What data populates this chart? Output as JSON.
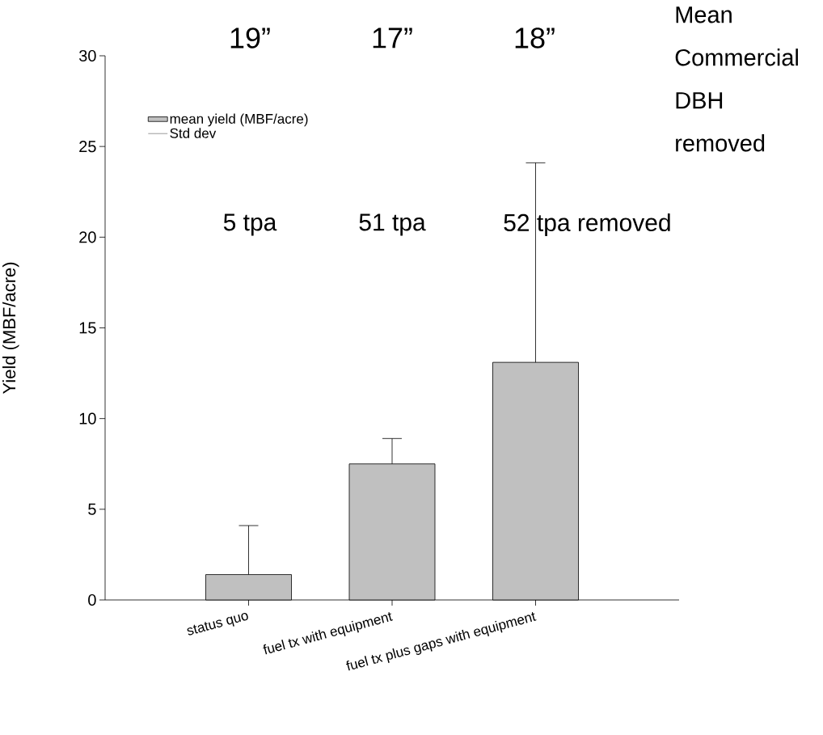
{
  "chart_data": {
    "type": "bar",
    "ylabel": "Yield (MBF/acre)",
    "categories": [
      "status quo",
      "fuel tx with equipment",
      "fuel tx plus gaps with equipment"
    ],
    "series": [
      {
        "name": "mean yield (MBF/acre)",
        "color": "#c0c0c0",
        "values": [
          1.4,
          7.5,
          13.1
        ],
        "errors": [
          [
            1.4,
            4.1
          ],
          [
            7.5,
            8.9
          ],
          [
            13.1,
            24.1
          ]
        ]
      }
    ],
    "ylim": [
      0,
      30
    ],
    "yticks": [
      0,
      5,
      10,
      15,
      20,
      25,
      30
    ],
    "legend": "top left",
    "grid": false,
    "annotations": [
      "19”",
      "17”",
      "18”",
      "Mean Commercial DBH removed",
      "5 tpa",
      "51 tpa",
      "52 tpa removed",
      "Std dev"
    ]
  }
}
